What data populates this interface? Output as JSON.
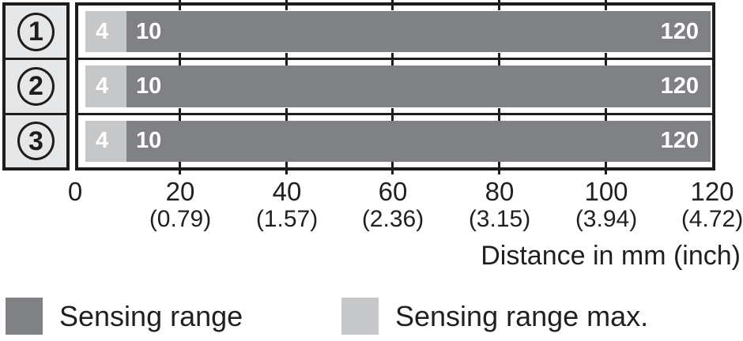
{
  "chart_data": {
    "type": "bar",
    "orientation": "horizontal",
    "unit": "mm",
    "xlabel": "Distance in mm (inch)",
    "xlim": [
      0,
      120
    ],
    "x_ticks_mm": [
      0,
      20,
      40,
      60,
      80,
      100,
      120
    ],
    "x_ticks_inch": [
      null,
      0.79,
      1.57,
      2.36,
      3.15,
      3.94,
      4.72
    ],
    "categories": [
      "1",
      "2",
      "3"
    ],
    "series": [
      {
        "name": "Sensing range max.",
        "color": "#c6c7c9",
        "ranges": [
          [
            4,
            10
          ],
          [
            4,
            10
          ],
          [
            4,
            10
          ]
        ]
      },
      {
        "name": "Sensing range",
        "color": "#808184",
        "ranges": [
          [
            10,
            120
          ],
          [
            10,
            120
          ],
          [
            10,
            120
          ]
        ]
      }
    ],
    "bar_value_labels": [
      "4",
      "10",
      "120"
    ],
    "grid": false,
    "legend_position": "bottom"
  },
  "rows": [
    {
      "marker": "1",
      "max_label": "4",
      "start_label": "10",
      "end_label": "120"
    },
    {
      "marker": "2",
      "max_label": "4",
      "start_label": "10",
      "end_label": "120"
    },
    {
      "marker": "3",
      "max_label": "4",
      "start_label": "10",
      "end_label": "120"
    }
  ],
  "axis": {
    "ticks": [
      {
        "mm": "0",
        "inch": ""
      },
      {
        "mm": "20",
        "inch": "(0.79)"
      },
      {
        "mm": "40",
        "inch": "(1.57)"
      },
      {
        "mm": "60",
        "inch": "(2.36)"
      },
      {
        "mm": "80",
        "inch": "(3.15)"
      },
      {
        "mm": "100",
        "inch": "(3.94)"
      },
      {
        "mm": "120",
        "inch": "(4.72)"
      }
    ],
    "title": "Distance in mm (inch)"
  },
  "legend": [
    {
      "label": "Sensing range",
      "color": "#808184"
    },
    {
      "label": "Sensing range max.",
      "color": "#c6c7c9"
    }
  ],
  "colors": {
    "bar_dark": "#808184",
    "bar_light": "#c6c7c9",
    "row_header_bg": "#e6e7e8",
    "frame": "#1d1d1b",
    "text": "#231f20",
    "bar_text": "#ffffff"
  }
}
